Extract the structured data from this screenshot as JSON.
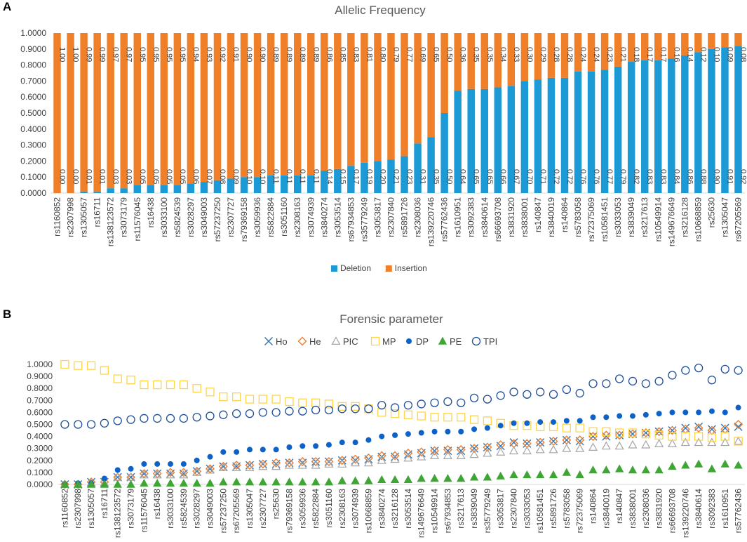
{
  "chart_data": [
    {
      "panel": "A",
      "type": "bar",
      "stacked": true,
      "title": "Allelic Frequency",
      "ylim": [
        0,
        1
      ],
      "yticks": [
        "0.0000",
        "0.1000",
        "0.2000",
        "0.3000",
        "0.4000",
        "0.5000",
        "0.6000",
        "0.7000",
        "0.8000",
        "0.9000",
        "1.0000"
      ],
      "categories": [
        "rs1160852",
        "rs2307998",
        "rs1305057",
        "rs16711",
        "rs138123572",
        "rs3073179",
        "rs11576045",
        "rs16438",
        "rs3033100",
        "rs5824539",
        "rs3028297",
        "rs3049003",
        "rs57237250",
        "rs2307727",
        "rs79369158",
        "rs3059936",
        "rs5822884",
        "rs3051160",
        "rs2308163",
        "rs3074939",
        "rs3840274",
        "rs3053514",
        "rs67934853",
        "rs35779249",
        "rs3053817",
        "rs2307840",
        "rs5891726",
        "rs2308036",
        "rs139220746",
        "rs57762436",
        "rs1610951",
        "rs3092383",
        "rs3840614",
        "rs66693708",
        "rs3831920",
        "rs3838001",
        "rs140847",
        "rs3840019",
        "rs140864",
        "rs5783058",
        "rs72375069",
        "rs10581451",
        "rs3033053",
        "rs3839049",
        "rs3217613",
        "rs10549914",
        "rs149676649",
        "rs3216128",
        "rs10668859",
        "rs25630",
        "rs1305047",
        "rs67205569"
      ],
      "series": [
        {
          "name": "Deletion",
          "color": "#1C9AD6",
          "values": [
            0.0,
            0.0,
            0.01,
            0.01,
            0.03,
            0.03,
            0.05,
            0.05,
            0.05,
            0.05,
            0.06,
            0.07,
            0.08,
            0.09,
            0.1,
            0.1,
            0.11,
            0.11,
            0.11,
            0.11,
            0.14,
            0.15,
            0.17,
            0.19,
            0.2,
            0.21,
            0.23,
            0.31,
            0.35,
            0.5,
            0.64,
            0.65,
            0.65,
            0.66,
            0.67,
            0.7,
            0.71,
            0.72,
            0.72,
            0.76,
            0.76,
            0.77,
            0.79,
            0.82,
            0.83,
            0.83,
            0.84,
            0.86,
            0.88,
            0.9,
            0.91,
            0.92
          ],
          "labels": [
            "0.00",
            "0.00",
            "0.01",
            "0.01",
            "0.03",
            "0.03",
            "0.05",
            "0.05",
            "0.05",
            "0.05",
            "0.06",
            "0.07",
            "0.08",
            "0.09",
            "0.10",
            "0.10",
            "0.11",
            "0.11",
            "0.11",
            "0.11",
            "0.14",
            "0.15",
            "0.17",
            "0.19",
            "0.20",
            "0.21",
            "0.23",
            "0.31",
            "0.35",
            "0.50",
            "0.64",
            "0.65",
            "0.65",
            "0.66",
            "0.67",
            "0.70",
            "0.71",
            "0.72",
            "0.72",
            "0.76",
            "0.76",
            "0.77",
            "0.79",
            "0.82",
            "0.83",
            "0.83",
            "0.84",
            "0.86",
            "0.88",
            "0.90",
            "0.91",
            "0.92"
          ]
        },
        {
          "name": "Insertion",
          "color": "#F07F2A",
          "values": [
            1.0,
            1.0,
            0.99,
            0.99,
            0.97,
            0.97,
            0.95,
            0.95,
            0.95,
            0.95,
            0.94,
            0.93,
            0.92,
            0.91,
            0.9,
            0.9,
            0.89,
            0.89,
            0.89,
            0.89,
            0.86,
            0.85,
            0.83,
            0.81,
            0.8,
            0.79,
            0.77,
            0.69,
            0.65,
            0.5,
            0.36,
            0.35,
            0.35,
            0.34,
            0.33,
            0.3,
            0.29,
            0.28,
            0.28,
            0.24,
            0.24,
            0.23,
            0.21,
            0.18,
            0.17,
            0.17,
            0.16,
            0.14,
            0.12,
            0.1,
            0.09,
            0.08
          ],
          "labels": [
            "1.00",
            "1.00",
            "0.99",
            "0.99",
            "0.97",
            "0.97",
            "0.95",
            "0.95",
            "0.95",
            "0.95",
            "0.94",
            "0.93",
            "0.92",
            "0.91",
            "0.90",
            "0.90",
            "0.89",
            "0.89",
            "0.89",
            "0.89",
            "0.86",
            "0.85",
            "0.83",
            "0.81",
            "0.80",
            "0.79",
            "0.77",
            "0.69",
            "0.65",
            "0.50",
            "0.36",
            "0.35",
            "0.35",
            "0.34",
            "0.33",
            "0.30",
            "0.29",
            "0.28",
            "0.28",
            "0.24",
            "0.24",
            "0.23",
            "0.21",
            "0.18",
            "0.17",
            "0.17",
            "0.16",
            "0.14",
            "0.12",
            "0.10",
            "0.09",
            "0.08"
          ]
        }
      ],
      "legend": "bottom"
    },
    {
      "panel": "B",
      "type": "scatter",
      "title": "Forensic parameter",
      "ylim": [
        0,
        1
      ],
      "yticks": [
        "0.0000",
        "0.1000",
        "0.2000",
        "0.3000",
        "0.4000",
        "0.5000",
        "0.6000",
        "0.7000",
        "0.8000",
        "0.9000",
        "1.0000"
      ],
      "categories": [
        "rs1160852",
        "rs2307998",
        "rs1305057",
        "rs16711",
        "rs138123572",
        "rs3073179",
        "rs11576045",
        "rs16438",
        "rs3033100",
        "rs5824539",
        "rs3028297",
        "rs3049003",
        "rs57237250",
        "rs67205569",
        "rs1305047",
        "rs2307727",
        "rs25630",
        "rs79369158",
        "rs3059936",
        "rs5822884",
        "rs3051160",
        "rs2308163",
        "rs3074939",
        "rs10668859",
        "rs3840274",
        "rs3216128",
        "rs3053514",
        "rs149676649",
        "rs10549914",
        "rs67934853",
        "rs3217613",
        "rs3839049",
        "rs35779249",
        "rs3053817",
        "rs2307840",
        "rs3033053",
        "rs10581451",
        "rs5891726",
        "rs5783058",
        "rs72375069",
        "rs140864",
        "rs3840019",
        "rs140847",
        "rs3838001",
        "rs2308036",
        "rs3831920",
        "rs66693708",
        "rs139220746",
        "rs3840614",
        "rs3092383",
        "rs1610951",
        "rs57762436"
      ],
      "legend": "top",
      "series": [
        {
          "name": "Ho",
          "marker": "x",
          "color": "#2E75B6",
          "values": [
            0.0,
            0.0,
            0.02,
            0.02,
            0.06,
            0.06,
            0.09,
            0.09,
            0.09,
            0.09,
            0.11,
            0.13,
            0.15,
            0.15,
            0.16,
            0.17,
            0.17,
            0.18,
            0.18,
            0.19,
            0.19,
            0.2,
            0.2,
            0.21,
            0.23,
            0.23,
            0.25,
            0.26,
            0.28,
            0.28,
            0.28,
            0.3,
            0.31,
            0.32,
            0.35,
            0.34,
            0.35,
            0.36,
            0.37,
            0.36,
            0.4,
            0.4,
            0.41,
            0.42,
            0.43,
            0.44,
            0.45,
            0.47,
            0.48,
            0.46,
            0.47,
            0.48
          ]
        },
        {
          "name": "He",
          "marker": "diamond",
          "color": "#ED7D31",
          "values": [
            0.0,
            0.0,
            0.02,
            0.02,
            0.06,
            0.06,
            0.09,
            0.09,
            0.1,
            0.1,
            0.11,
            0.13,
            0.15,
            0.16,
            0.16,
            0.17,
            0.18,
            0.18,
            0.19,
            0.19,
            0.19,
            0.2,
            0.21,
            0.22,
            0.24,
            0.24,
            0.26,
            0.27,
            0.28,
            0.29,
            0.29,
            0.3,
            0.31,
            0.33,
            0.34,
            0.34,
            0.35,
            0.36,
            0.37,
            0.37,
            0.4,
            0.41,
            0.41,
            0.42,
            0.43,
            0.44,
            0.45,
            0.46,
            0.47,
            0.45,
            0.46,
            0.5
          ]
        },
        {
          "name": "PIC",
          "marker": "triangle-open",
          "color": "#A5A5A5",
          "values": [
            0.0,
            0.0,
            0.01,
            0.01,
            0.06,
            0.06,
            0.08,
            0.08,
            0.08,
            0.08,
            0.1,
            0.12,
            0.14,
            0.14,
            0.14,
            0.15,
            0.15,
            0.16,
            0.16,
            0.16,
            0.17,
            0.17,
            0.18,
            0.18,
            0.2,
            0.21,
            0.22,
            0.23,
            0.24,
            0.24,
            0.24,
            0.25,
            0.26,
            0.27,
            0.28,
            0.28,
            0.29,
            0.29,
            0.3,
            0.3,
            0.31,
            0.32,
            0.32,
            0.33,
            0.33,
            0.34,
            0.34,
            0.35,
            0.35,
            0.35,
            0.35,
            0.36
          ]
        },
        {
          "name": "MP",
          "marker": "square-open",
          "color": "#FFD447",
          "values": [
            1.0,
            0.99,
            0.99,
            0.95,
            0.88,
            0.87,
            0.83,
            0.83,
            0.83,
            0.83,
            0.8,
            0.77,
            0.73,
            0.73,
            0.71,
            0.71,
            0.71,
            0.69,
            0.68,
            0.68,
            0.67,
            0.65,
            0.65,
            0.63,
            0.6,
            0.59,
            0.58,
            0.57,
            0.56,
            0.56,
            0.56,
            0.54,
            0.53,
            0.51,
            0.49,
            0.49,
            0.48,
            0.48,
            0.47,
            0.47,
            0.44,
            0.44,
            0.43,
            0.43,
            0.42,
            0.41,
            0.4,
            0.4,
            0.4,
            0.39,
            0.4,
            0.36
          ]
        },
        {
          "name": "DP",
          "marker": "circle",
          "color": "#0E62C7",
          "values": [
            0.0,
            0.01,
            0.01,
            0.05,
            0.12,
            0.13,
            0.17,
            0.17,
            0.17,
            0.17,
            0.2,
            0.23,
            0.27,
            0.27,
            0.29,
            0.29,
            0.29,
            0.31,
            0.32,
            0.32,
            0.33,
            0.35,
            0.35,
            0.37,
            0.4,
            0.41,
            0.42,
            0.43,
            0.44,
            0.44,
            0.44,
            0.46,
            0.47,
            0.49,
            0.51,
            0.51,
            0.52,
            0.52,
            0.53,
            0.53,
            0.56,
            0.56,
            0.57,
            0.57,
            0.58,
            0.59,
            0.6,
            0.6,
            0.6,
            0.61,
            0.6,
            0.64
          ]
        },
        {
          "name": "PE",
          "marker": "triangle",
          "color": "#3FA535",
          "values": [
            0.0,
            0.0,
            0.0,
            0.0,
            0.0,
            0.0,
            0.01,
            0.01,
            0.01,
            0.01,
            0.01,
            0.01,
            0.02,
            0.02,
            0.02,
            0.02,
            0.02,
            0.02,
            0.02,
            0.02,
            0.02,
            0.03,
            0.03,
            0.03,
            0.04,
            0.04,
            0.04,
            0.05,
            0.05,
            0.05,
            0.05,
            0.06,
            0.06,
            0.07,
            0.08,
            0.08,
            0.08,
            0.08,
            0.1,
            0.08,
            0.12,
            0.12,
            0.13,
            0.12,
            0.12,
            0.12,
            0.15,
            0.16,
            0.17,
            0.13,
            0.17,
            0.16
          ]
        },
        {
          "name": "TPI",
          "marker": "circle-open",
          "color": "#1F4E9A",
          "values": [
            0.5,
            0.5,
            0.5,
            0.51,
            0.53,
            0.54,
            0.55,
            0.55,
            0.55,
            0.55,
            0.56,
            0.57,
            0.58,
            0.59,
            0.59,
            0.6,
            0.6,
            0.61,
            0.61,
            0.62,
            0.62,
            0.63,
            0.63,
            0.63,
            0.66,
            0.64,
            0.66,
            0.67,
            0.68,
            0.69,
            0.68,
            0.72,
            0.71,
            0.74,
            0.77,
            0.75,
            0.77,
            0.75,
            0.79,
            0.76,
            0.84,
            0.84,
            0.88,
            0.86,
            0.84,
            0.86,
            0.91,
            0.95,
            0.97,
            0.87,
            0.96,
            0.95
          ]
        }
      ]
    }
  ]
}
